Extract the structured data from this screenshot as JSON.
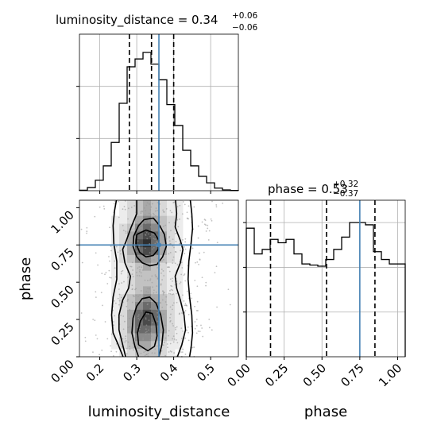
{
  "chart_data": {
    "type": "corner",
    "parameters": [
      "luminosity_distance",
      "phase"
    ],
    "titles": {
      "luminosity_distance": {
        "prefix": "luminosity_distance = 0.34",
        "plus": "+0.06",
        "minus": "−0.06"
      },
      "phase": {
        "prefix": "phase = 0.53",
        "plus": "+0.32",
        "minus": "−0.37"
      }
    },
    "axis_labels": {
      "x_left": "luminosity_distance",
      "x_right": "phase",
      "y_left": "phase"
    },
    "truth": {
      "luminosity_distance": 0.36,
      "phase": 0.75
    },
    "quantiles": {
      "luminosity_distance": [
        0.28,
        0.34,
        0.4
      ],
      "phase": [
        0.16,
        0.53,
        0.85
      ]
    },
    "ranges": {
      "luminosity_distance": [
        0.145,
        0.575
      ],
      "phase": [
        0.0,
        1.05
      ]
    },
    "ticks": {
      "luminosity_distance": [
        "0.2",
        "0.3",
        "0.4",
        "0.5"
      ],
      "phase": [
        "0.00",
        "0.25",
        "0.50",
        "0.75",
        "1.00"
      ]
    },
    "hist_luminosity_distance": {
      "edges": [
        0.145,
        0.1665,
        0.188,
        0.2095,
        0.231,
        0.2525,
        0.274,
        0.2955,
        0.317,
        0.3385,
        0.36,
        0.3815,
        0.403,
        0.4245,
        0.446,
        0.4675,
        0.489,
        0.5105,
        0.532,
        0.5535,
        0.575
      ],
      "counts": [
        0.2,
        1.2,
        4.0,
        9.5,
        18.5,
        33.5,
        47.5,
        50.5,
        53.0,
        48.5,
        42.5,
        33.0,
        25.0,
        15.5,
        9.5,
        5.5,
        3.0,
        1.0,
        0.3,
        0.1
      ],
      "ymax": 60
    },
    "hist_phase": {
      "edges": [
        0,
        0.0525,
        0.105,
        0.1575,
        0.21,
        0.2625,
        0.315,
        0.3675,
        0.42,
        0.4725,
        0.525,
        0.5775,
        0.63,
        0.6825,
        0.735,
        0.7875,
        0.84,
        0.8925,
        0.945,
        0.9975,
        1.05
      ],
      "counts": [
        57.5,
        46.0,
        48.0,
        52.5,
        51.0,
        52.5,
        46.0,
        41.5,
        41.0,
        40.5,
        43.5,
        48.0,
        53.5,
        60.0,
        60.0,
        59.0,
        47.0,
        43.5,
        41.5,
        41.5
      ],
      "ymax": 70
    },
    "density2d": {
      "x_edges": [
        0.145,
        0.1665,
        0.188,
        0.2095,
        0.231,
        0.2525,
        0.274,
        0.2955,
        0.317,
        0.3385,
        0.36,
        0.3815,
        0.403,
        0.4245,
        0.446,
        0.4675,
        0.489,
        0.5105,
        0.532,
        0.5535,
        0.575
      ],
      "y_edges": [
        0,
        0.0525,
        0.105,
        0.1575,
        0.21,
        0.2625,
        0.315,
        0.3675,
        0.42,
        0.4725,
        0.525,
        0.5775,
        0.63,
        0.6825,
        0.735,
        0.7875,
        0.84,
        0.8925,
        0.945,
        0.9975,
        1.05
      ],
      "rows_top_to_bottom": [
        [
          0,
          0,
          0,
          0,
          0,
          1,
          2,
          3,
          4,
          3,
          2,
          1,
          1,
          0,
          0,
          0,
          0,
          0,
          0,
          0
        ],
        [
          0,
          0,
          0,
          0,
          0,
          1,
          2,
          3,
          4,
          3,
          2,
          1,
          1,
          0,
          0,
          0,
          0,
          0,
          0,
          0
        ],
        [
          0,
          0,
          0,
          0,
          1,
          1,
          2,
          4,
          5,
          4,
          3,
          2,
          1,
          0,
          0,
          0,
          0,
          0,
          0,
          0
        ],
        [
          0,
          0,
          0,
          0,
          1,
          2,
          3,
          5,
          6,
          5,
          3,
          2,
          1,
          0,
          0,
          0,
          0,
          0,
          0,
          0
        ],
        [
          0,
          0,
          0,
          0,
          1,
          2,
          4,
          6,
          7,
          6,
          4,
          2,
          1,
          0,
          0,
          0,
          0,
          0,
          0,
          0
        ],
        [
          0,
          0,
          0,
          0,
          1,
          2,
          4,
          7,
          8,
          6,
          4,
          2,
          1,
          0,
          0,
          0,
          0,
          0,
          0,
          0
        ],
        [
          0,
          0,
          0,
          0,
          1,
          2,
          4,
          6,
          7,
          6,
          4,
          2,
          1,
          0,
          0,
          0,
          0,
          0,
          0,
          0
        ],
        [
          0,
          0,
          0,
          0,
          1,
          2,
          3,
          5,
          5,
          4,
          3,
          2,
          1,
          0,
          0,
          0,
          0,
          0,
          0,
          0
        ],
        [
          0,
          0,
          0,
          0,
          1,
          1,
          2,
          3,
          4,
          3,
          2,
          1,
          1,
          0,
          0,
          0,
          0,
          0,
          0,
          0
        ],
        [
          0,
          0,
          0,
          0,
          1,
          1,
          2,
          3,
          3,
          3,
          2,
          1,
          1,
          0,
          0,
          0,
          0,
          0,
          0,
          0
        ],
        [
          0,
          0,
          0,
          0,
          1,
          1,
          2,
          3,
          3,
          3,
          2,
          1,
          1,
          0,
          0,
          0,
          0,
          0,
          0,
          0
        ],
        [
          0,
          0,
          0,
          0,
          1,
          1,
          2,
          3,
          4,
          3,
          2,
          1,
          1,
          0,
          0,
          0,
          0,
          0,
          0,
          0
        ],
        [
          0,
          0,
          0,
          0,
          1,
          2,
          3,
          4,
          5,
          4,
          3,
          2,
          1,
          0,
          0,
          0,
          0,
          0,
          0,
          0
        ],
        [
          0,
          0,
          0,
          0,
          1,
          2,
          3,
          5,
          6,
          5,
          3,
          2,
          1,
          0,
          0,
          0,
          0,
          0,
          0,
          0
        ],
        [
          0,
          0,
          0,
          0,
          1,
          2,
          4,
          6,
          7,
          6,
          4,
          2,
          1,
          0,
          0,
          0,
          0,
          0,
          0,
          0
        ],
        [
          0,
          0,
          0,
          0,
          1,
          2,
          4,
          6,
          7,
          6,
          4,
          2,
          1,
          0,
          0,
          0,
          0,
          0,
          0,
          0
        ],
        [
          0,
          0,
          0,
          0,
          1,
          2,
          4,
          6,
          6,
          5,
          4,
          2,
          1,
          0,
          0,
          0,
          0,
          0,
          0,
          0
        ],
        [
          0,
          0,
          0,
          0,
          1,
          2,
          3,
          5,
          5,
          4,
          3,
          2,
          1,
          0,
          0,
          0,
          0,
          0,
          0,
          0
        ],
        [
          0,
          0,
          0,
          0,
          1,
          2,
          3,
          4,
          4,
          3,
          2,
          1,
          1,
          0,
          0,
          0,
          0,
          0,
          0,
          0
        ],
        [
          0,
          0,
          0,
          0,
          0,
          1,
          2,
          3,
          3,
          3,
          2,
          1,
          0,
          0,
          0,
          0,
          0,
          0,
          0,
          0
        ]
      ]
    },
    "contours": [
      [
        [
          0.3,
          1.05
        ],
        [
          0.3,
          0.96
        ],
        [
          0.285,
          0.87
        ],
        [
          0.272,
          0.78
        ],
        [
          0.262,
          0.72
        ],
        [
          0.268,
          0.63
        ],
        [
          0.283,
          0.54
        ],
        [
          0.278,
          0.46
        ],
        [
          0.262,
          0.38
        ],
        [
          0.252,
          0.28
        ],
        [
          0.252,
          0.18
        ],
        [
          0.262,
          0.08
        ],
        [
          0.27,
          0.0
        ]
      ],
      [
        [
          0.405,
          1.05
        ],
        [
          0.408,
          0.96
        ],
        [
          0.404,
          0.87
        ],
        [
          0.418,
          0.78
        ],
        [
          0.425,
          0.72
        ],
        [
          0.418,
          0.63
        ],
        [
          0.404,
          0.54
        ],
        [
          0.408,
          0.46
        ],
        [
          0.418,
          0.38
        ],
        [
          0.428,
          0.28
        ],
        [
          0.432,
          0.18
        ],
        [
          0.422,
          0.08
        ],
        [
          0.41,
          0.0
        ]
      ],
      [
        [
          0.263,
          0.0
        ],
        [
          0.25,
          0.08
        ],
        [
          0.236,
          0.16
        ],
        [
          0.232,
          0.28
        ],
        [
          0.236,
          0.4
        ],
        [
          0.246,
          0.52
        ],
        [
          0.246,
          0.64
        ],
        [
          0.238,
          0.76
        ],
        [
          0.236,
          0.88
        ],
        [
          0.24,
          0.98
        ],
        [
          0.245,
          1.05
        ]
      ],
      [
        [
          0.445,
          1.05
        ],
        [
          0.449,
          0.96
        ],
        [
          0.451,
          0.86
        ],
        [
          0.447,
          0.76
        ],
        [
          0.441,
          0.64
        ],
        [
          0.439,
          0.52
        ],
        [
          0.443,
          0.4
        ],
        [
          0.449,
          0.28
        ],
        [
          0.451,
          0.16
        ],
        [
          0.447,
          0.06
        ],
        [
          0.443,
          0.0
        ]
      ],
      [
        [
          0.32,
          0.92
        ],
        [
          0.305,
          0.88
        ],
        [
          0.292,
          0.81
        ],
        [
          0.29,
          0.74
        ],
        [
          0.3,
          0.67
        ],
        [
          0.315,
          0.63
        ],
        [
          0.335,
          0.61
        ],
        [
          0.355,
          0.62
        ],
        [
          0.37,
          0.67
        ],
        [
          0.38,
          0.74
        ],
        [
          0.375,
          0.82
        ],
        [
          0.362,
          0.88
        ],
        [
          0.345,
          0.93
        ],
        [
          0.32,
          0.92
        ]
      ],
      [
        [
          0.3,
          0.82
        ],
        [
          0.298,
          0.76
        ],
        [
          0.308,
          0.7
        ],
        [
          0.325,
          0.67
        ],
        [
          0.345,
          0.68
        ],
        [
          0.358,
          0.72
        ],
        [
          0.36,
          0.78
        ],
        [
          0.348,
          0.83
        ],
        [
          0.325,
          0.85
        ],
        [
          0.3,
          0.82
        ]
      ],
      [
        [
          0.305,
          0.0
        ],
        [
          0.295,
          0.07
        ],
        [
          0.287,
          0.16
        ],
        [
          0.29,
          0.26
        ],
        [
          0.3,
          0.34
        ],
        [
          0.315,
          0.39
        ],
        [
          0.335,
          0.4
        ],
        [
          0.352,
          0.36
        ],
        [
          0.365,
          0.28
        ],
        [
          0.372,
          0.18
        ],
        [
          0.368,
          0.08
        ],
        [
          0.36,
          0.0
        ]
      ],
      [
        [
          0.305,
          0.08
        ],
        [
          0.302,
          0.16
        ],
        [
          0.31,
          0.24
        ],
        [
          0.325,
          0.3
        ],
        [
          0.342,
          0.29
        ],
        [
          0.352,
          0.22
        ],
        [
          0.355,
          0.14
        ],
        [
          0.348,
          0.07
        ],
        [
          0.33,
          0.04
        ],
        [
          0.305,
          0.08
        ]
      ]
    ]
  }
}
